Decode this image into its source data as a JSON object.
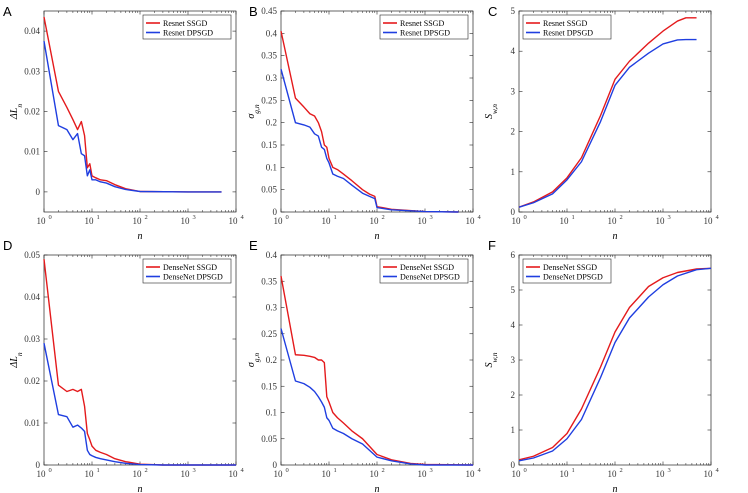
{
  "chart_data": [
    {
      "panel": "A",
      "type": "line",
      "xscale": "log",
      "xlim": [
        1,
        10000
      ],
      "ylim": [
        -0.005,
        0.045
      ],
      "yticks": [
        "0",
        "0.01",
        "0.02",
        "0.03",
        "0.04"
      ],
      "xlabel": "n",
      "ylabel": "ΔL_n",
      "legend_loc": "top-right",
      "series": [
        {
          "name": "Resnet SSGD",
          "color": "#e41a1c",
          "x": [
            1,
            2,
            3,
            4,
            5,
            6,
            7,
            8,
            9,
            10,
            12,
            15,
            20,
            30,
            50,
            100,
            1000,
            5000
          ],
          "y": [
            0.0435,
            0.025,
            0.021,
            0.018,
            0.0155,
            0.0175,
            0.014,
            0.006,
            0.007,
            0.004,
            0.0035,
            0.003,
            0.0028,
            0.0018,
            0.0008,
            0.0001,
            0.0,
            0.0
          ]
        },
        {
          "name": "Resnet DPSGD",
          "color": "#1f3ee0",
          "x": [
            1,
            2,
            3,
            4,
            5,
            6,
            7,
            8,
            9,
            10,
            12,
            15,
            20,
            30,
            50,
            100,
            1000,
            5000
          ],
          "y": [
            0.0375,
            0.0165,
            0.0155,
            0.013,
            0.0145,
            0.0095,
            0.009,
            0.004,
            0.0055,
            0.003,
            0.003,
            0.0025,
            0.0022,
            0.0013,
            0.0006,
            0.0001,
            0.0,
            0.0
          ]
        }
      ]
    },
    {
      "panel": "B",
      "type": "line",
      "xscale": "log",
      "xlim": [
        1,
        10000
      ],
      "ylim": [
        0,
        0.45
      ],
      "yticks": [
        "0",
        "0.05",
        "0.1",
        "0.15",
        "0.2",
        "0.25",
        "0.3",
        "0.35",
        "0.4",
        "0.45"
      ],
      "xlabel": "n",
      "ylabel": "σ_g,n",
      "legend_loc": "top-right",
      "series": [
        {
          "name": "Resnet SSGD",
          "color": "#e41a1c",
          "x": [
            1,
            2,
            3,
            4,
            5,
            6,
            7,
            8,
            9,
            10,
            12,
            15,
            20,
            30,
            50,
            70,
            90,
            100,
            200,
            1000,
            5000
          ],
          "y": [
            0.405,
            0.255,
            0.235,
            0.22,
            0.215,
            0.2,
            0.18,
            0.15,
            0.145,
            0.12,
            0.1,
            0.095,
            0.085,
            0.07,
            0.05,
            0.04,
            0.035,
            0.012,
            0.006,
            0.001,
            0.0
          ]
        },
        {
          "name": "Resnet DPSGD",
          "color": "#1f3ee0",
          "x": [
            1,
            2,
            3,
            4,
            5,
            6,
            7,
            8,
            9,
            10,
            12,
            15,
            20,
            30,
            50,
            70,
            90,
            100,
            200,
            1000,
            5000
          ],
          "y": [
            0.32,
            0.2,
            0.195,
            0.19,
            0.175,
            0.17,
            0.145,
            0.14,
            0.12,
            0.11,
            0.085,
            0.08,
            0.075,
            0.06,
            0.042,
            0.035,
            0.03,
            0.01,
            0.005,
            0.001,
            0.0
          ]
        }
      ]
    },
    {
      "panel": "C",
      "type": "line",
      "xscale": "log",
      "xlim": [
        1,
        10000
      ],
      "ylim": [
        0,
        5
      ],
      "yticks": [
        "0",
        "1",
        "2",
        "3",
        "4",
        "5"
      ],
      "xlabel": "n",
      "ylabel": "S_w,n",
      "legend_loc": "top-left",
      "series": [
        {
          "name": "Resnet SSGD",
          "color": "#e41a1c",
          "x": [
            1,
            2,
            5,
            10,
            20,
            50,
            100,
            200,
            500,
            1000,
            2000,
            3000,
            5000
          ],
          "y": [
            0.12,
            0.25,
            0.5,
            0.85,
            1.35,
            2.4,
            3.3,
            3.75,
            4.2,
            4.5,
            4.75,
            4.83,
            4.83
          ]
        },
        {
          "name": "Resnet DPSGD",
          "color": "#1f3ee0",
          "x": [
            1,
            2,
            5,
            10,
            20,
            50,
            100,
            200,
            500,
            1000,
            2000,
            3000,
            5000
          ],
          "y": [
            0.12,
            0.23,
            0.45,
            0.8,
            1.25,
            2.25,
            3.15,
            3.6,
            3.95,
            4.18,
            4.28,
            4.29,
            4.29
          ]
        }
      ]
    },
    {
      "panel": "D",
      "type": "line",
      "xscale": "log",
      "xlim": [
        1,
        10000
      ],
      "ylim": [
        0,
        0.05
      ],
      "yticks": [
        "0",
        "0.01",
        "0.02",
        "0.03",
        "0.04",
        "0.05"
      ],
      "xlabel": "n",
      "ylabel": "ΔL_n",
      "legend_loc": "top-right",
      "series": [
        {
          "name": "DenseNet SSGD",
          "color": "#e41a1c",
          "x": [
            1,
            2,
            3,
            4,
            5,
            6,
            7,
            8,
            9,
            10,
            12,
            15,
            20,
            30,
            50,
            100,
            300,
            1000,
            10000
          ],
          "y": [
            0.049,
            0.019,
            0.0175,
            0.018,
            0.0175,
            0.018,
            0.014,
            0.0075,
            0.006,
            0.0045,
            0.0035,
            0.003,
            0.0025,
            0.0015,
            0.0008,
            0.0002,
            0.0,
            0.0,
            0.0
          ]
        },
        {
          "name": "DenseNet DPSGD",
          "color": "#1f3ee0",
          "x": [
            1,
            2,
            3,
            4,
            5,
            6,
            7,
            8,
            9,
            10,
            12,
            15,
            20,
            30,
            50,
            100,
            300,
            1000,
            10000
          ],
          "y": [
            0.029,
            0.012,
            0.0115,
            0.009,
            0.0095,
            0.0088,
            0.008,
            0.0035,
            0.0025,
            0.0022,
            0.0018,
            0.0015,
            0.0012,
            0.0008,
            0.0004,
            0.0001,
            0.0,
            0.0,
            0.0
          ]
        }
      ]
    },
    {
      "panel": "E",
      "type": "line",
      "xscale": "log",
      "xlim": [
        1,
        10000
      ],
      "ylim": [
        0,
        0.4
      ],
      "yticks": [
        "0",
        "0.05",
        "0.1",
        "0.15",
        "0.2",
        "0.25",
        "0.3",
        "0.35",
        "0.4"
      ],
      "xlabel": "n",
      "ylabel": "σ_g,n",
      "legend_loc": "top-right",
      "series": [
        {
          "name": "DenseNet SSGD",
          "color": "#e41a1c",
          "x": [
            1,
            2,
            3,
            4,
            5,
            6,
            7,
            8,
            9,
            10,
            12,
            15,
            20,
            30,
            50,
            100,
            200,
            500,
            1000,
            10000
          ],
          "y": [
            0.36,
            0.21,
            0.209,
            0.207,
            0.205,
            0.2,
            0.2,
            0.195,
            0.13,
            0.12,
            0.1,
            0.09,
            0.08,
            0.065,
            0.05,
            0.02,
            0.01,
            0.003,
            0.001,
            0.0
          ]
        },
        {
          "name": "DenseNet DPSGD",
          "color": "#1f3ee0",
          "x": [
            1,
            2,
            3,
            4,
            5,
            6,
            7,
            8,
            9,
            10,
            12,
            15,
            20,
            30,
            50,
            100,
            200,
            500,
            1000,
            10000
          ],
          "y": [
            0.26,
            0.16,
            0.155,
            0.148,
            0.14,
            0.13,
            0.12,
            0.11,
            0.09,
            0.085,
            0.07,
            0.065,
            0.06,
            0.05,
            0.04,
            0.015,
            0.008,
            0.002,
            0.0,
            0.0
          ]
        }
      ]
    },
    {
      "panel": "F",
      "type": "line",
      "xscale": "log",
      "xlim": [
        1,
        10000
      ],
      "ylim": [
        0,
        6
      ],
      "yticks": [
        "0",
        "1",
        "2",
        "3",
        "4",
        "5",
        "6"
      ],
      "xlabel": "n",
      "ylabel": "S_w,n",
      "legend_loc": "top-left",
      "series": [
        {
          "name": "DenseNet SSGD",
          "color": "#e41a1c",
          "x": [
            1,
            2,
            5,
            10,
            20,
            50,
            100,
            200,
            500,
            1000,
            2000,
            5000,
            10000
          ],
          "y": [
            0.15,
            0.25,
            0.5,
            0.9,
            1.6,
            2.8,
            3.8,
            4.5,
            5.1,
            5.35,
            5.5,
            5.6,
            5.62
          ]
        },
        {
          "name": "DenseNet DPSGD",
          "color": "#1f3ee0",
          "x": [
            1,
            2,
            5,
            10,
            20,
            50,
            100,
            200,
            500,
            1000,
            2000,
            5000,
            10000
          ],
          "y": [
            0.12,
            0.2,
            0.4,
            0.75,
            1.3,
            2.5,
            3.5,
            4.2,
            4.8,
            5.15,
            5.4,
            5.58,
            5.62
          ]
        }
      ]
    }
  ]
}
